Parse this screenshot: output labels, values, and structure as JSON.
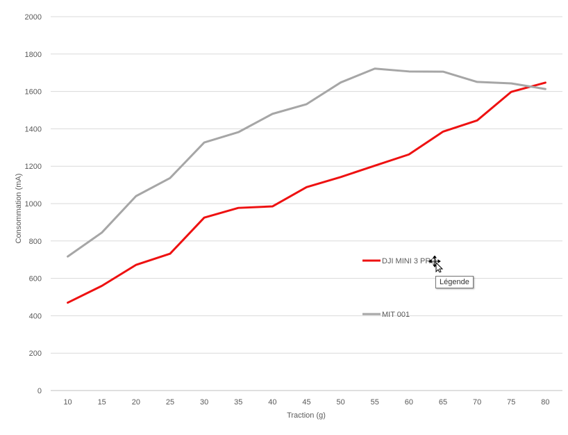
{
  "chart_data": {
    "type": "line",
    "xlabel": "Traction (g)",
    "ylabel": "Consommation (mA)",
    "categories": [
      "10",
      "15",
      "20",
      "25",
      "30",
      "35",
      "40",
      "45",
      "50",
      "55",
      "60",
      "65",
      "70",
      "75",
      "80"
    ],
    "ylim": [
      0,
      2000
    ],
    "yticks": [
      0,
      200,
      400,
      600,
      800,
      1000,
      1200,
      1400,
      1600,
      1800,
      2000
    ],
    "grid": true,
    "legend_position": "center-right",
    "series": [
      {
        "name": "DJI MINI 3 PRO",
        "color": "#ee1111",
        "values": [
          470,
          560,
          672,
          732,
          925,
          977,
          985,
          1088,
          1142,
          1203,
          1263,
          1385,
          1445,
          1598,
          1647
        ]
      },
      {
        "name": "MIT 001",
        "color": "#a6a6a6",
        "values": [
          717,
          845,
          1040,
          1137,
          1327,
          1382,
          1480,
          1532,
          1648,
          1722,
          1707,
          1706,
          1651,
          1643,
          1613
        ]
      }
    ]
  },
  "tooltip": {
    "text": "Légende"
  },
  "colors": {
    "grid": "#d9d9d9",
    "axis": "#bfbfbf",
    "text": "#595959"
  }
}
